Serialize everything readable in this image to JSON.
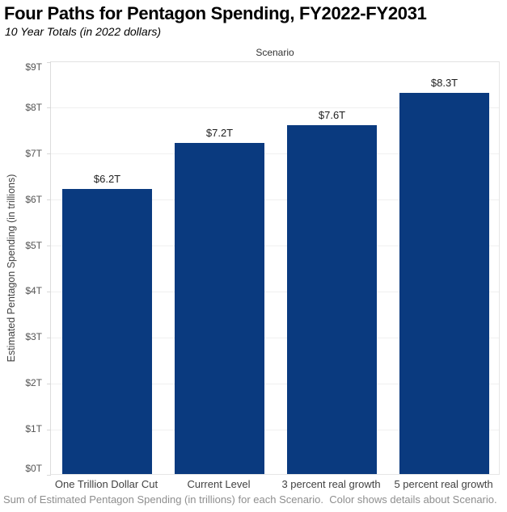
{
  "header": {
    "title": "Four Paths for Pentagon Spending, FY2022-FY2031",
    "subtitle": "10 Year Totals (in 2022 dollars)"
  },
  "chart": {
    "column_header": "Scenario",
    "y_axis_title": "Estimated Pentagon Spending (in trillions)"
  },
  "footer": {
    "caption": "Sum of Estimated Pentagon Spending (in trillions) for each Scenario.  Color shows details about Scenario."
  },
  "colors": {
    "bar": "#0a3a7f",
    "gridline": "#f0f0f0",
    "tick": "#d8d8d8",
    "tick_label": "#555555",
    "category_label": "#424242",
    "value_label": "#1e1e1e",
    "caption_text": "#8e8e8e"
  },
  "chart_data": {
    "type": "bar",
    "categories": [
      "One Trillion Dollar Cut",
      "Current Level",
      "3 percent real growth",
      "5 percent real growth"
    ],
    "values": [
      6.2,
      7.2,
      7.6,
      8.3
    ],
    "bar_labels": [
      "$6.2T",
      "$7.2T",
      "$7.6T",
      "$8.3T"
    ],
    "title": "Four Paths for Pentagon Spending, FY2022-FY2031",
    "subtitle": "10 Year Totals (in 2022 dollars)",
    "xlabel": "Scenario",
    "ylabel": "Estimated Pentagon Spending (in trillions)",
    "ylim": [
      0,
      9
    ],
    "y_tick_interval": 1,
    "y_tick_labels": [
      "$0T",
      "$1T",
      "$2T",
      "$3T",
      "$4T",
      "$5T",
      "$6T",
      "$7T",
      "$8T",
      "$9T"
    ],
    "grid": true,
    "legend": "none",
    "bar_color": "#0a3a7f"
  }
}
